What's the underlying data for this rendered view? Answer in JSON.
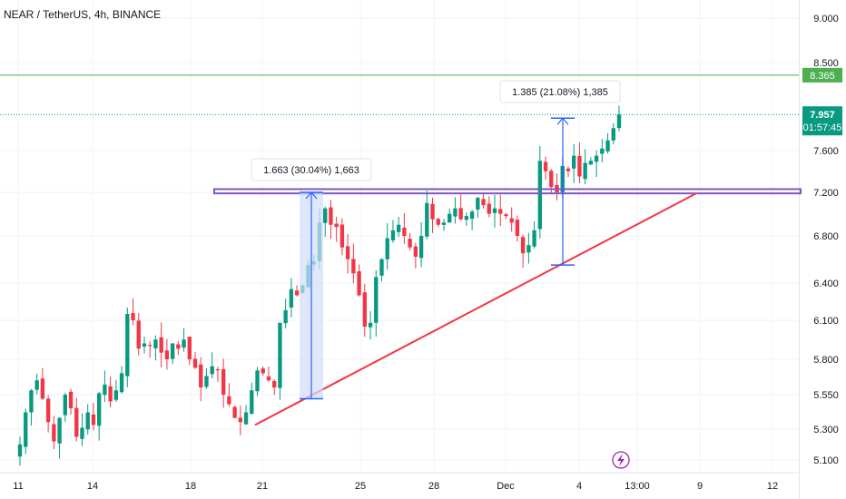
{
  "header": {
    "symbol": "NEAR / TetherUS, 4h, BINANCE"
  },
  "colors": {
    "up": "#089981",
    "down": "#f23645",
    "support": "#f23645",
    "resistance": "#7e57c2",
    "horizontal_level": "#4caf50",
    "measure": "#2962ff",
    "measure_fill": "#d1def9",
    "price_line": "#089981"
  },
  "current_price": {
    "value": "7.957",
    "countdown": "01:57:45"
  },
  "horizontal_level": {
    "value": 8.365,
    "label": "8.365"
  },
  "measures": [
    {
      "label": "1.663 (30.04%) 1,663"
    },
    {
      "label": "1.385 (21.08%) 1,385"
    }
  ],
  "icons": {
    "replay": "lightning-icon"
  },
  "chart_data": {
    "type": "candlestick",
    "title": "NEAR / TetherUS, 4h, BINANCE",
    "x_ticks": [
      "11",
      "14",
      "18",
      "21",
      "25",
      "28",
      "Dec",
      "4",
      "13:00",
      "9",
      "12"
    ],
    "y_ticks": [
      "9.000",
      "8.500",
      "7.600",
      "7.200",
      "6.800",
      "6.400",
      "6.100",
      "5.800",
      "5.550",
      "5.300",
      "5.100"
    ],
    "y_scale": "log",
    "ylim": [
      5.05,
      9.3
    ],
    "series": [
      {
        "name": "price",
        "close_path": [
          5.2,
          5.42,
          5.58,
          5.65,
          5.52,
          5.35,
          5.22,
          5.38,
          5.55,
          5.45,
          5.25,
          5.31,
          5.42,
          5.33,
          5.56,
          5.62,
          5.5,
          5.58,
          5.7,
          6.15,
          6.1,
          5.88,
          5.92,
          5.9,
          5.95,
          5.85,
          5.8,
          5.92,
          5.88,
          5.95,
          5.8,
          5.74,
          5.6,
          5.68,
          5.75,
          5.72,
          5.55,
          5.48,
          5.38,
          5.35,
          5.42,
          5.58,
          5.72,
          5.7,
          5.65,
          5.6,
          6.08,
          6.18,
          6.35,
          6.3,
          6.38,
          6.55,
          6.58,
          6.92,
          7.05,
          6.9,
          6.88,
          6.7,
          6.6,
          6.48,
          6.3,
          6.05,
          6.08,
          6.45,
          6.6,
          6.78,
          6.85,
          6.9,
          6.8,
          6.7,
          6.62,
          6.8,
          7.1,
          6.95,
          6.9,
          6.92,
          7.0,
          7.05,
          6.95,
          6.98,
          7.02,
          7.15,
          7.08,
          7.0,
          7.05,
          7.0,
          6.98,
          6.92,
          6.8,
          6.65,
          6.72,
          6.85,
          7.5,
          7.4,
          7.25,
          7.2,
          7.45,
          7.4,
          7.55,
          7.35,
          7.48,
          7.5,
          7.55,
          7.62,
          7.7,
          7.82,
          7.957
        ]
      }
    ],
    "levels": {
      "resistance_zone": [
        7.19,
        7.23
      ],
      "horizontal_line": 8.365
    }
  }
}
